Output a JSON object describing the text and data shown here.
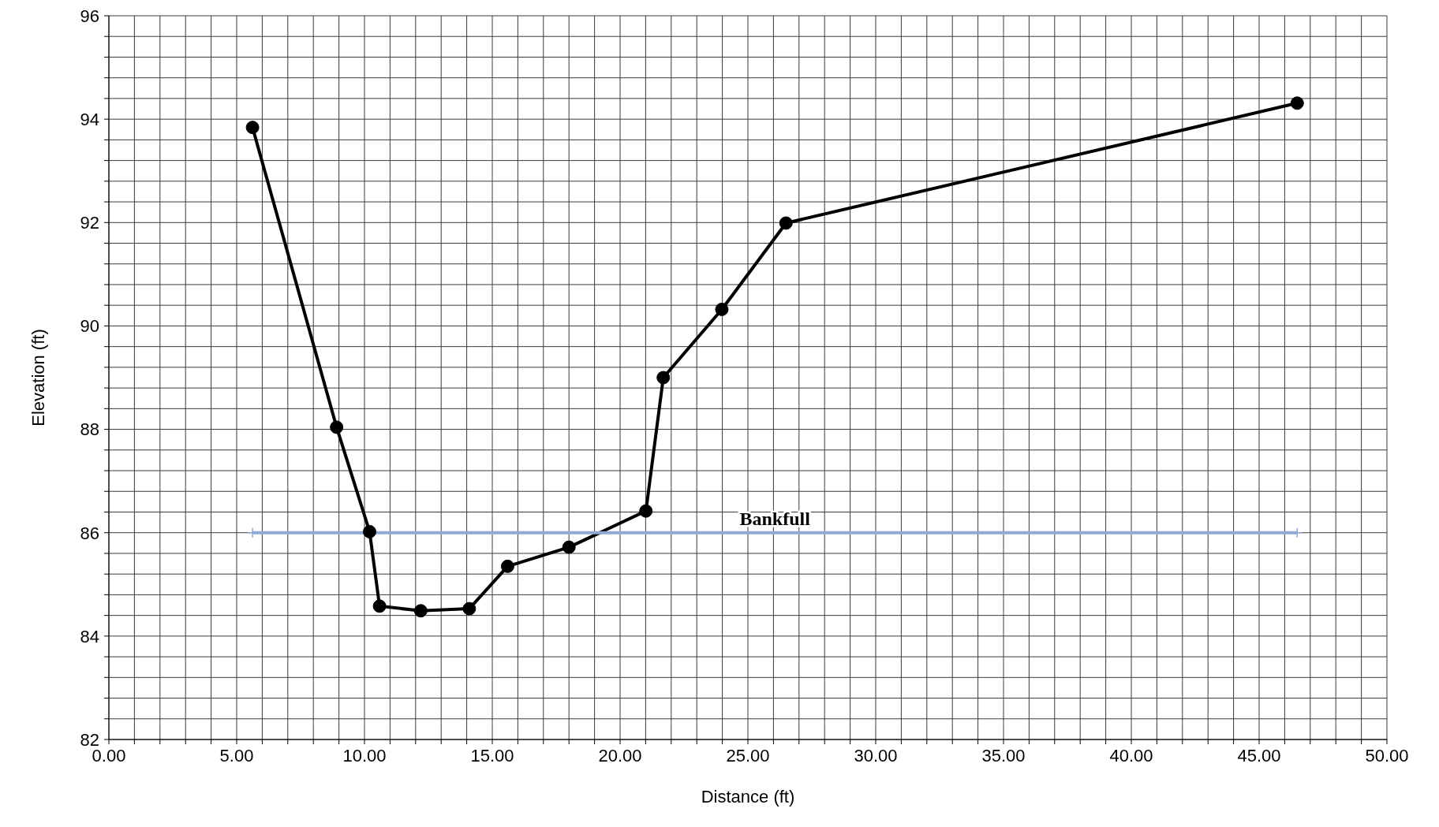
{
  "chart_data": {
    "type": "line",
    "xlabel": "Distance (ft)",
    "ylabel": "Elevation (ft)",
    "xlim": [
      0,
      50
    ],
    "ylim": [
      82,
      96
    ],
    "xticks": [
      {
        "value": 0,
        "label": "0.00"
      },
      {
        "value": 1,
        "label": null
      },
      {
        "value": 2,
        "label": null
      },
      {
        "value": 3,
        "label": null
      },
      {
        "value": 4,
        "label": null
      },
      {
        "value": 5,
        "label": "5.00"
      },
      {
        "value": 6,
        "label": null
      },
      {
        "value": 7,
        "label": null
      },
      {
        "value": 8,
        "label": null
      },
      {
        "value": 9,
        "label": null
      },
      {
        "value": 10,
        "label": "10.00"
      },
      {
        "value": 11,
        "label": null
      },
      {
        "value": 12,
        "label": null
      },
      {
        "value": 13,
        "label": null
      },
      {
        "value": 14,
        "label": null
      },
      {
        "value": 15,
        "label": "15.00"
      },
      {
        "value": 16,
        "label": null
      },
      {
        "value": 17,
        "label": null
      },
      {
        "value": 18,
        "label": null
      },
      {
        "value": 19,
        "label": null
      },
      {
        "value": 20,
        "label": "20.00"
      },
      {
        "value": 21,
        "label": null
      },
      {
        "value": 22,
        "label": null
      },
      {
        "value": 23,
        "label": null
      },
      {
        "value": 24,
        "label": null
      },
      {
        "value": 25,
        "label": "25.00"
      },
      {
        "value": 26,
        "label": null
      },
      {
        "value": 27,
        "label": null
      },
      {
        "value": 28,
        "label": null
      },
      {
        "value": 29,
        "label": null
      },
      {
        "value": 30,
        "label": "30.00"
      },
      {
        "value": 31,
        "label": null
      },
      {
        "value": 32,
        "label": null
      },
      {
        "value": 33,
        "label": null
      },
      {
        "value": 34,
        "label": null
      },
      {
        "value": 35,
        "label": "35.00"
      },
      {
        "value": 36,
        "label": null
      },
      {
        "value": 37,
        "label": null
      },
      {
        "value": 38,
        "label": null
      },
      {
        "value": 39,
        "label": null
      },
      {
        "value": 40,
        "label": "40.00"
      },
      {
        "value": 41,
        "label": null
      },
      {
        "value": 42,
        "label": null
      },
      {
        "value": 43,
        "label": null
      },
      {
        "value": 44,
        "label": null
      },
      {
        "value": 45,
        "label": "45.00"
      },
      {
        "value": 46,
        "label": null
      },
      {
        "value": 47,
        "label": null
      },
      {
        "value": 48,
        "label": null
      },
      {
        "value": 49,
        "label": null
      },
      {
        "value": 50,
        "label": "50.00"
      }
    ],
    "yticks": [
      82,
      {
        "value": 82.4,
        "label": null
      },
      {
        "value": 82.8,
        "label": null
      },
      {
        "value": 83.2,
        "label": null
      },
      {
        "value": 83.6,
        "label": null
      },
      84,
      {
        "value": 84.4,
        "label": null
      },
      {
        "value": 84.8,
        "label": null
      },
      {
        "value": 85.2,
        "label": null
      },
      {
        "value": 85.6,
        "label": null
      },
      86,
      {
        "value": 86.4,
        "label": null
      },
      {
        "value": 86.8,
        "label": null
      },
      {
        "value": 87.2,
        "label": null
      },
      {
        "value": 87.6,
        "label": null
      },
      88,
      {
        "value": 88.4,
        "label": null
      },
      {
        "value": 88.8,
        "label": null
      },
      {
        "value": 89.2,
        "label": null
      },
      {
        "value": 89.6,
        "label": null
      },
      90,
      {
        "value": 90.4,
        "label": null
      },
      {
        "value": 90.8,
        "label": null
      },
      {
        "value": 91.2,
        "label": null
      },
      {
        "value": 91.6,
        "label": null
      },
      92,
      {
        "value": 92.4,
        "label": null
      },
      {
        "value": 92.8,
        "label": null
      },
      {
        "value": 93.2,
        "label": null
      },
      {
        "value": 93.6,
        "label": null
      },
      94,
      {
        "value": 94.4,
        "label": null
      },
      {
        "value": 94.8,
        "label": null
      },
      {
        "value": 95.2,
        "label": null
      },
      {
        "value": 95.6,
        "label": null
      },
      96
    ],
    "grid": true,
    "legend": false,
    "series": [
      {
        "color": "#000000",
        "marker": "circle",
        "x": [
          5.62,
          8.91,
          10.2,
          10.59,
          12.2,
          14.1,
          15.6,
          18.0,
          21.01,
          21.69,
          23.98,
          26.49,
          46.49
        ],
        "values": [
          93.84,
          88.04,
          86.02,
          84.58,
          84.49,
          84.53,
          85.35,
          85.72,
          86.42,
          89.0,
          90.32,
          91.99,
          94.31
        ]
      },
      {
        "name": "Bankfull",
        "color": "#8eaad2",
        "marker": "cross",
        "x": [
          5.62,
          46.49
        ],
        "values": [
          86,
          86
        ]
      }
    ]
  }
}
